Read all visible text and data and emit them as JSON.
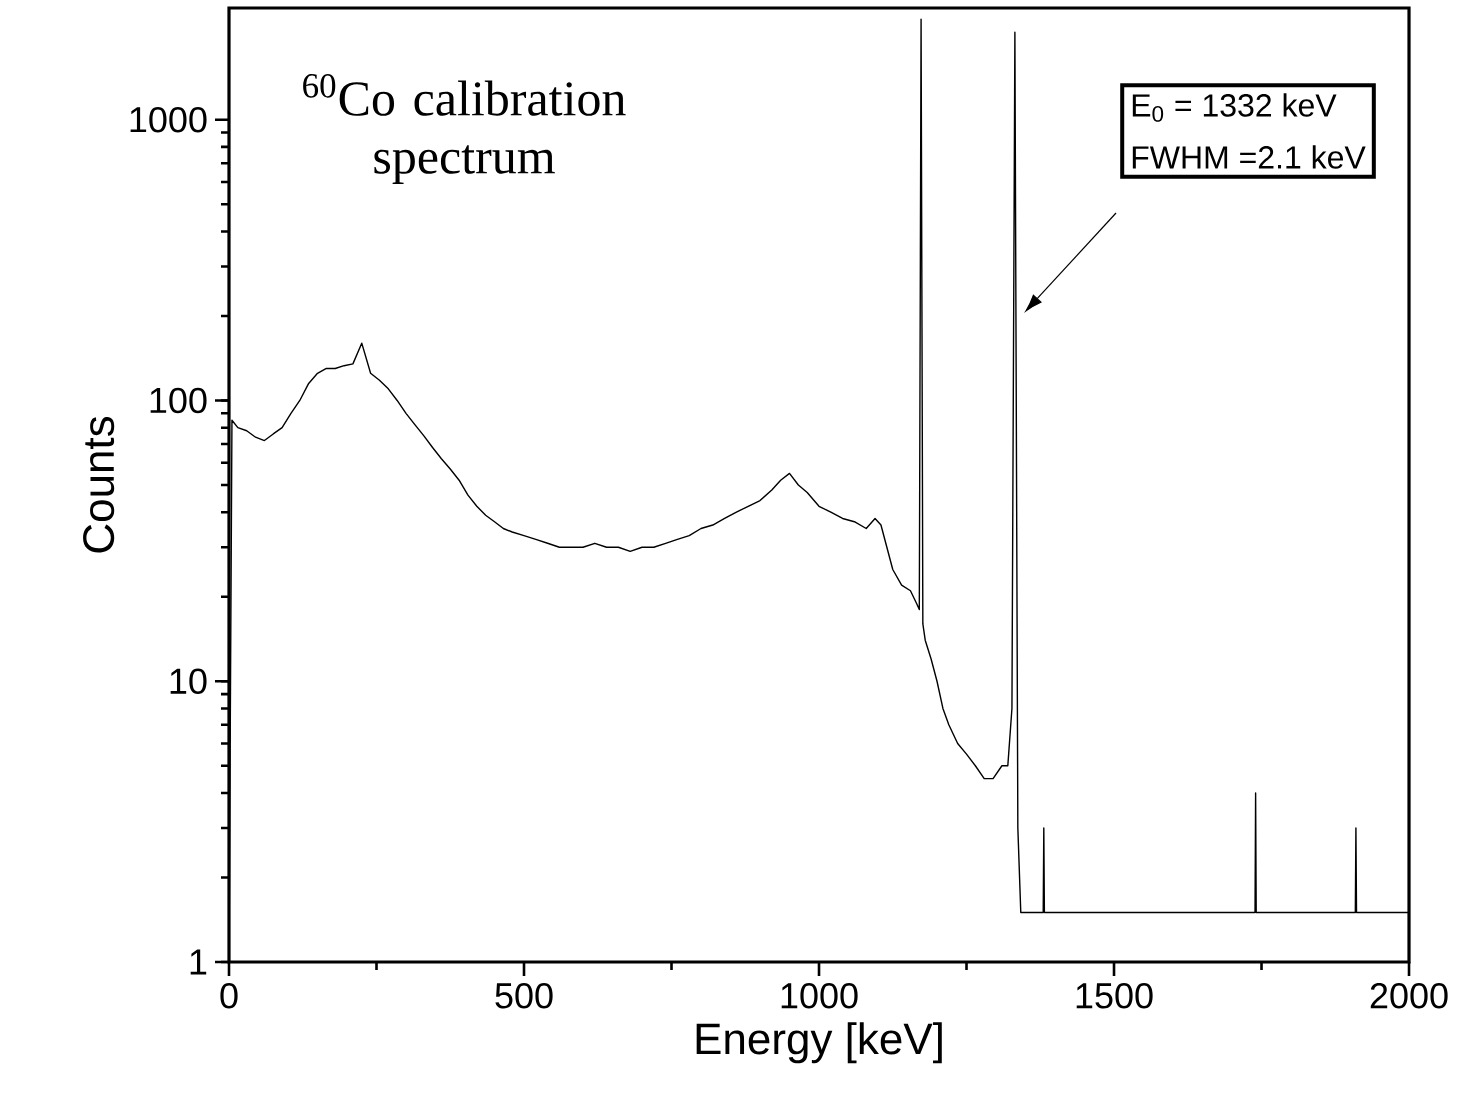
{
  "chart_data": {
    "type": "line",
    "xlabel": "Energy [keV]",
    "ylabel": "Counts",
    "log": "y",
    "color": "#000000",
    "xlim": [
      0,
      2000
    ],
    "xticks": [
      0,
      500,
      1000,
      1500,
      2000
    ],
    "ylim": [
      1,
      2500
    ],
    "yticks": [
      1,
      10,
      100,
      1000
    ],
    "annotations": [
      "$^{60}$Co calibration spectrum",
      "E$_{0}$ = 1332 keV",
      "FWHM =2.1 keV"
    ],
    "x": [
      0,
      5,
      15,
      30,
      45,
      60,
      75,
      90,
      105,
      120,
      135,
      150,
      165,
      180,
      195,
      210,
      225,
      240,
      255,
      270,
      285,
      300,
      315,
      330,
      345,
      360,
      375,
      390,
      405,
      420,
      435,
      450,
      465,
      480,
      500,
      520,
      540,
      560,
      580,
      600,
      620,
      640,
      660,
      680,
      700,
      720,
      740,
      760,
      780,
      800,
      820,
      840,
      860,
      880,
      900,
      920,
      935,
      950,
      965,
      980,
      1000,
      1020,
      1040,
      1060,
      1080,
      1095,
      1105,
      1115,
      1125,
      1140,
      1155,
      1165,
      1170,
      1173,
      1176,
      1180,
      1190,
      1200,
      1210,
      1220,
      1235,
      1250,
      1265,
      1280,
      1295,
      1310,
      1320,
      1327,
      1332,
      1337,
      1342,
      1350,
      1380,
      1381,
      1382,
      1420,
      1480,
      1520,
      1600,
      1660,
      1739,
      1740,
      1741,
      1800,
      1860,
      1909,
      1910,
      1911,
      1960,
      2000
    ],
    "values": [
      1,
      85,
      80,
      78,
      74,
      72,
      76,
      80,
      90,
      100,
      115,
      125,
      130,
      130,
      133,
      135,
      160,
      125,
      118,
      110,
      100,
      90,
      82,
      75,
      68,
      62,
      57,
      52,
      46,
      42,
      39,
      37,
      35,
      34,
      33,
      32,
      31,
      30,
      30,
      30,
      31,
      30,
      30,
      29,
      30,
      30,
      31,
      32,
      33,
      35,
      36,
      38,
      40,
      42,
      44,
      48,
      52,
      55,
      50,
      47,
      42,
      40,
      38,
      37,
      35,
      38,
      36,
      30,
      25,
      22,
      21,
      19,
      18,
      2280,
      16,
      14,
      12,
      10,
      8,
      7,
      6,
      5.5,
      5,
      4.5,
      4.5,
      5,
      5,
      8,
      2050,
      3,
      1.5,
      1.5,
      1.5,
      3,
      1.5,
      1.5,
      1.5,
      1.5,
      1.5,
      1.5,
      1.5,
      4,
      1.5,
      1.5,
      1.5,
      1.5,
      3,
      1.5,
      1.5,
      1.5
    ]
  }
}
